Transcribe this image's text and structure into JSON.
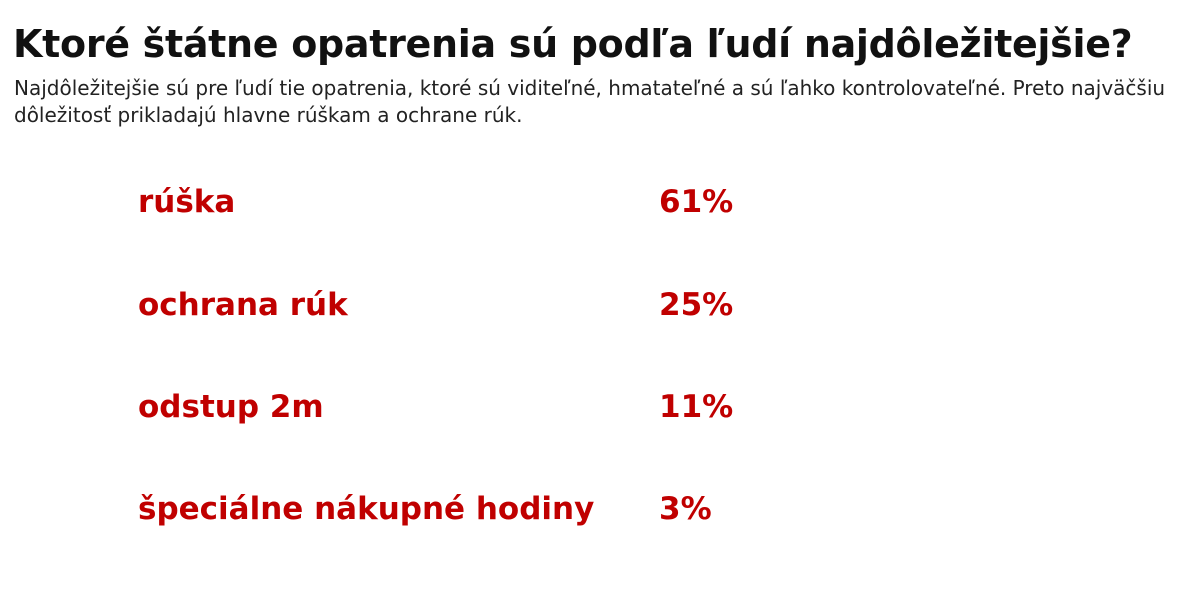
{
  "title": "Ktoré štátne opatrenia sú podľa ľudí najdôležitejšie?",
  "subtitle": "Najdôležitejšie sú pre ľudí tie opatrenia, ktoré sú viditeľné, hmatateľné a sú ľahko kontrolovateľné. Preto najväčšiu dôležitosť prikladajú hlavne rúškam a ochrane rúk.",
  "colors": {
    "accent": "#c00000",
    "text": "#111111"
  },
  "chart_data": {
    "type": "table",
    "categories": [
      "rúška",
      "ochrana rúk",
      "odstup 2m",
      "špeciálne nákupné hodiny"
    ],
    "values": [
      61,
      25,
      11,
      3
    ],
    "value_labels": [
      "61%",
      "25%",
      "11%",
      "3%"
    ],
    "unit": "%"
  }
}
